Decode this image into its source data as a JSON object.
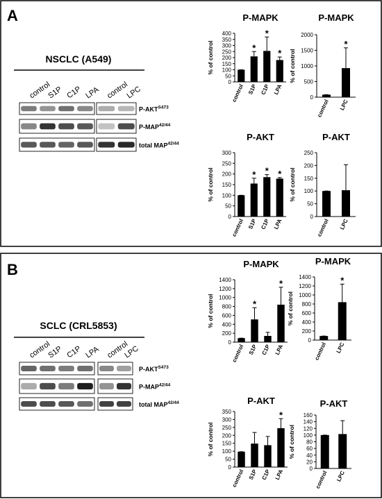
{
  "panels": [
    {
      "label": "A",
      "cell_line": "NSCLC (A549)",
      "lanes": [
        "control",
        "S1P",
        "C1P",
        "LPA",
        "control",
        "LPC"
      ],
      "rows": [
        {
          "name": "P-AKT",
          "sup": "S473"
        },
        {
          "name": "P-MAP",
          "sup": "42/44"
        },
        {
          "name": "total MAP",
          "sup": "42/44"
        }
      ]
    },
    {
      "label": "B",
      "cell_line": "SCLC (CRL5853)",
      "lanes": [
        "control",
        "S1P",
        "C1P",
        "LPA",
        "control",
        "LPC"
      ],
      "rows": [
        {
          "name": "P-AKT",
          "sup": "S473"
        },
        {
          "name": "P-MAP",
          "sup": "42/44"
        },
        {
          "name": "total MAP",
          "sup": "42/44"
        }
      ]
    }
  ],
  "chart_data": [
    {
      "type": "bar",
      "title": "P-MAPK",
      "y_label": "% of control",
      "categories": [
        "control",
        "S1P",
        "C1P",
        "LPA"
      ],
      "values": [
        100,
        210,
        255,
        180
      ],
      "errors": [
        0,
        40,
        115,
        25
      ],
      "markers": [
        null,
        "*",
        "*",
        "*"
      ],
      "color": "#000000",
      "ylim": [
        0,
        400
      ],
      "yticks": [
        0,
        50,
        100,
        150,
        200,
        250,
        300,
        350,
        400
      ]
    },
    {
      "type": "bar",
      "title": "P-MAPK",
      "y_label": "% of control",
      "categories": [
        "control",
        "LPC"
      ],
      "values": [
        80,
        930
      ],
      "errors": [
        0,
        650
      ],
      "markers": [
        null,
        "*"
      ],
      "color": "#000000",
      "ylim": [
        0,
        2000
      ],
      "yticks": [
        0,
        500,
        1000,
        1500,
        2000
      ]
    },
    {
      "type": "bar",
      "title": "P-AKT",
      "y_label": "% of control",
      "categories": [
        "control",
        "S1P",
        "C1P",
        "LPA"
      ],
      "values": [
        100,
        155,
        185,
        178
      ],
      "errors": [
        0,
        25,
        12,
        5
      ],
      "markers": [
        null,
        "*",
        "*",
        "*"
      ],
      "color": "#000000",
      "ylim": [
        0,
        300
      ],
      "yticks": [
        0,
        50,
        100,
        150,
        200,
        250,
        300
      ]
    },
    {
      "type": "bar",
      "title": "P-AKT",
      "y_label": "% of control",
      "categories": [
        "control",
        "LPC"
      ],
      "values": [
        100,
        103
      ],
      "errors": [
        0,
        100
      ],
      "markers": [
        null,
        null
      ],
      "color": "#000000",
      "ylim": [
        0,
        250
      ],
      "yticks": [
        0,
        50,
        100,
        150,
        200,
        250
      ]
    },
    {
      "type": "bar",
      "title": "P-MAPK",
      "y_label": "% of control",
      "categories": [
        "control",
        "S1P",
        "C1P",
        "LPA"
      ],
      "values": [
        90,
        510,
        140,
        840
      ],
      "errors": [
        0,
        260,
        80,
        390
      ],
      "markers": [
        null,
        "*",
        null,
        "*"
      ],
      "color": "#000000",
      "ylim": [
        0,
        1400
      ],
      "yticks": [
        0,
        200,
        400,
        600,
        800,
        1000,
        1200,
        1400
      ]
    },
    {
      "type": "bar",
      "title": "P-MAPK",
      "y_label": "% of control",
      "categories": [
        "control",
        "LPC"
      ],
      "values": [
        90,
        840
      ],
      "errors": [
        0,
        400
      ],
      "markers": [
        null,
        "*"
      ],
      "color": "#000000",
      "ylim": [
        0,
        1400
      ],
      "yticks": [
        0,
        200,
        400,
        600,
        800,
        1000,
        1200,
        1400
      ]
    },
    {
      "type": "bar",
      "title": "P-AKT",
      "y_label": "% of control",
      "categories": [
        "control",
        "S1P",
        "C1P",
        "LPA"
      ],
      "values": [
        97,
        148,
        138,
        245
      ],
      "errors": [
        0,
        70,
        55,
        60
      ],
      "markers": [
        null,
        null,
        null,
        "*"
      ],
      "color": "#000000",
      "ylim": [
        0,
        350
      ],
      "yticks": [
        0,
        50,
        100,
        150,
        200,
        250,
        300,
        350
      ]
    },
    {
      "type": "bar",
      "title": "P-AKT",
      "y_label": "% of control",
      "categories": [
        "control",
        "LPC"
      ],
      "values": [
        100,
        103
      ],
      "errors": [
        0,
        40
      ],
      "markers": [
        null,
        null
      ],
      "color": "#000000",
      "ylim": [
        0,
        160
      ],
      "yticks": [
        0,
        20,
        40,
        60,
        80,
        100,
        120,
        140,
        160
      ]
    }
  ]
}
